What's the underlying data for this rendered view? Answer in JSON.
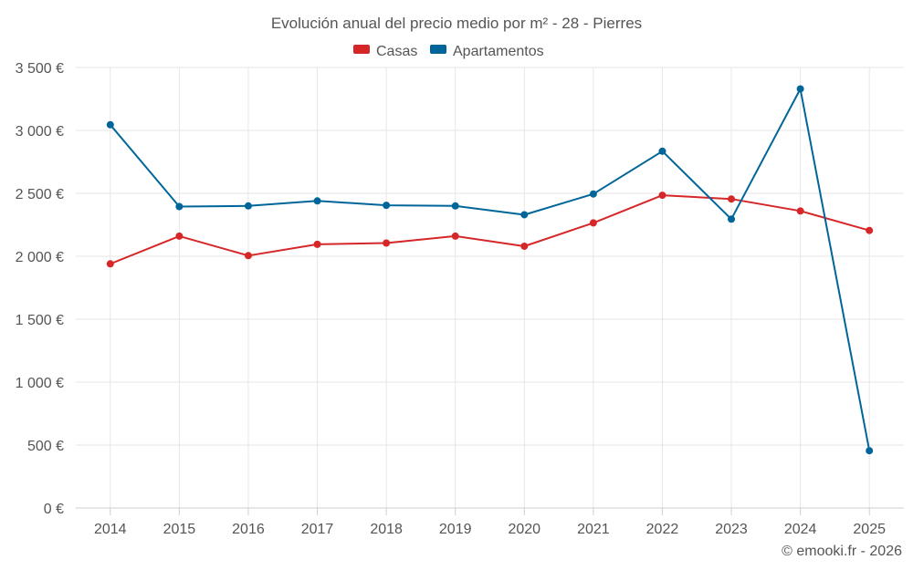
{
  "chart_data": {
    "type": "line",
    "title": "Evolución anual del precio medio por m² - 28 - Pierres",
    "categories": [
      "2014",
      "2015",
      "2016",
      "2017",
      "2018",
      "2019",
      "2020",
      "2021",
      "2022",
      "2023",
      "2024",
      "2025"
    ],
    "series": [
      {
        "name": "Casas",
        "color": "#d62728",
        "values": [
          1940,
          2160,
          2005,
          2095,
          2105,
          2160,
          2080,
          2265,
          2485,
          2455,
          2360,
          2205
        ]
      },
      {
        "name": "Apartamentos",
        "color": "#006699",
        "values": [
          3045,
          2395,
          2400,
          2440,
          2405,
          2400,
          2330,
          2495,
          2835,
          2295,
          3330,
          455
        ]
      }
    ],
    "ylim": [
      0,
      3500
    ],
    "yticks": [
      0,
      500,
      1000,
      1500,
      2000,
      2500,
      3000,
      3500
    ],
    "ytick_labels": [
      "0 €",
      "500 €",
      "1 000 €",
      "1 500 €",
      "2 000 €",
      "2 500 €",
      "3 000 €",
      "3 500 €"
    ],
    "xlabel": "",
    "ylabel": "",
    "legend_position": "top-center",
    "grid": true
  },
  "credit": "© emooki.fr - 2026"
}
